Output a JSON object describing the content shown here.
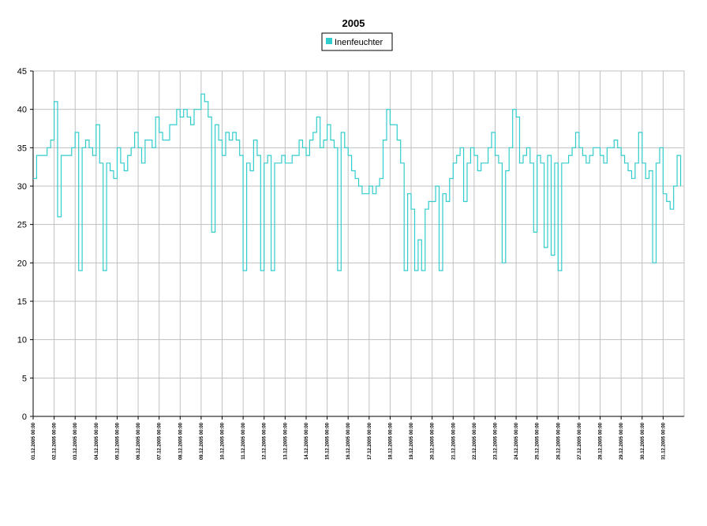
{
  "chart_data": {
    "type": "line",
    "title": "2005",
    "categories": [
      "01.12.2005 00:00",
      null,
      null,
      null,
      null,
      null,
      "02.12.2005 00:00",
      null,
      null,
      null,
      null,
      null,
      "03.12.2005 00:00",
      null,
      null,
      null,
      null,
      null,
      "04.12.2005 00:00",
      null,
      null,
      null,
      null,
      null,
      "05.12.2005 00:00",
      null,
      null,
      null,
      null,
      null,
      "06.12.2005 00:00",
      null,
      null,
      null,
      null,
      null,
      "07.12.2005 00:00",
      null,
      null,
      null,
      null,
      null,
      "08.12.2005 00:00",
      null,
      null,
      null,
      null,
      null,
      "09.12.2005 00:00",
      null,
      null,
      null,
      null,
      null,
      "10.12.2005 00:00",
      null,
      null,
      null,
      null,
      null,
      "11.12.2005 00:00",
      null,
      null,
      null,
      null,
      null,
      "12.12.2005 00:00",
      null,
      null,
      null,
      null,
      null,
      "13.12.2005 00:00",
      null,
      null,
      null,
      null,
      null,
      "14.12.2005 00:00",
      null,
      null,
      null,
      null,
      null,
      "15.12.2005 00:00",
      null,
      null,
      null,
      null,
      null,
      "16.12.2005 00:00",
      null,
      null,
      null,
      null,
      null,
      "17.12.2005 00:00",
      null,
      null,
      null,
      null,
      null,
      "18.12.2005 00:00",
      null,
      null,
      null,
      null,
      null,
      "19.12.2005 00:00",
      null,
      null,
      null,
      null,
      null,
      "20.12.2005 00:00",
      null,
      null,
      null,
      null,
      null,
      "21.12.2005 00:00",
      null,
      null,
      null,
      null,
      null,
      "22.12.2005 00:00",
      null,
      null,
      null,
      null,
      null,
      "23.12.2005 00:00",
      null,
      null,
      null,
      null,
      null,
      "24.12.2005 00:00",
      null,
      null,
      null,
      null,
      null,
      "25.12.2005 00:00",
      null,
      null,
      null,
      null,
      null,
      "26.12.2005 00:00",
      null,
      null,
      null,
      null,
      null,
      "27.12.2005 00:00",
      null,
      null,
      null,
      null,
      null,
      "28.12.2005 00:00",
      null,
      null,
      null,
      null,
      null,
      "29.12.2005 00:00",
      null,
      null,
      null,
      null,
      null,
      "30.12.2005 00:00",
      null,
      null,
      null,
      null,
      null,
      "31.12.2005 00:00",
      null,
      null,
      null,
      null,
      null
    ],
    "series": [
      {
        "name": "Inenfeuchter",
        "color": "#33cccc",
        "values": [
          31,
          34,
          34,
          34,
          35,
          36,
          41,
          26,
          34,
          34,
          34,
          35,
          37,
          19,
          35,
          36,
          35,
          34,
          38,
          33,
          19,
          33,
          32,
          31,
          35,
          33,
          32,
          34,
          35,
          37,
          35,
          33,
          36,
          36,
          35,
          39,
          37,
          36,
          36,
          38,
          38,
          40,
          39,
          40,
          39,
          38,
          40,
          40,
          42,
          41,
          39,
          24,
          38,
          36,
          34,
          37,
          36,
          37,
          36,
          34,
          19,
          33,
          32,
          36,
          34,
          19,
          33,
          34,
          19,
          33,
          33,
          34,
          33,
          33,
          34,
          34,
          36,
          35,
          34,
          36,
          37,
          39,
          35,
          36,
          38,
          36,
          35,
          19,
          37,
          35,
          34,
          32,
          31,
          30,
          29,
          29,
          30,
          29,
          30,
          31,
          36,
          40,
          38,
          38,
          36,
          33,
          19,
          29,
          27,
          19,
          23,
          19,
          27,
          28,
          28,
          30,
          19,
          29,
          28,
          31,
          33,
          34,
          35,
          28,
          33,
          35,
          34,
          32,
          33,
          33,
          35,
          37,
          34,
          33,
          20,
          32,
          35,
          40,
          39,
          33,
          34,
          35,
          33,
          24,
          34,
          33,
          22,
          34,
          21,
          33,
          19,
          33,
          33,
          34,
          35,
          37,
          35,
          34,
          33,
          34,
          35,
          35,
          34,
          33,
          35,
          35,
          36,
          35,
          34,
          33,
          32,
          31,
          33,
          37,
          33,
          31,
          32,
          20,
          33,
          35,
          29,
          28,
          27,
          30,
          34,
          30
        ]
      }
    ],
    "ylim": [
      0,
      45
    ],
    "yticks": [
      0,
      5,
      10,
      15,
      20,
      25,
      30,
      35,
      40,
      45
    ],
    "grid": true
  }
}
